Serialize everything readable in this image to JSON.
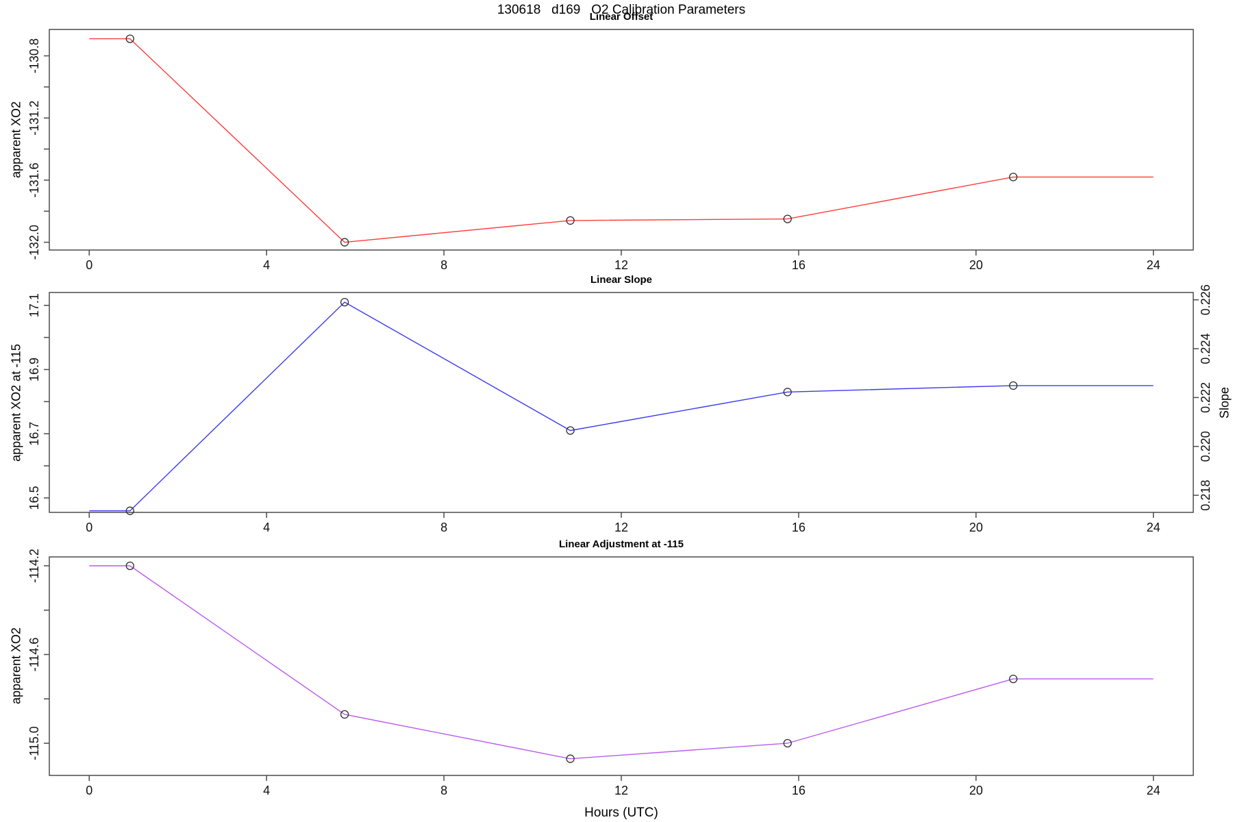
{
  "figure": {
    "title": "130618   d169   O2 Calibration Parameters",
    "xlabel": "Hours (UTC)"
  },
  "chart_data": [
    {
      "type": "line",
      "title": "Linear Offset",
      "ylabel": "apparent XO2",
      "series_color": "#ff3b3b",
      "marker": "open-circle",
      "x": [
        0.92,
        5.76,
        10.85,
        15.75,
        20.84
      ],
      "y": [
        -130.69,
        -132.0,
        -131.86,
        -131.85,
        -131.58
      ],
      "line_extends_to": [
        0,
        24
      ],
      "xlim": [
        -0.9,
        24.9
      ],
      "ylim": [
        -132.05,
        -130.63
      ],
      "x_ticks": [
        0,
        4,
        8,
        12,
        16,
        20,
        24
      ],
      "y_ticks": [
        -132.0,
        -131.8,
        -131.6,
        -131.4,
        -131.2,
        -131.0,
        -130.8
      ],
      "y_tick_labels": [
        "-132.0",
        "",
        "-131.6",
        "",
        "-131.2",
        "",
        "-130.8"
      ],
      "grid": false,
      "legend": "none"
    },
    {
      "type": "line",
      "title": "Linear Slope",
      "ylabel": "apparent XO2 at -115",
      "ylabel_right": "Slope",
      "series_color": "#3a3aef",
      "marker": "open-circle",
      "x": [
        0.92,
        5.76,
        10.85,
        15.75,
        20.84
      ],
      "y": [
        16.46,
        17.11,
        16.71,
        16.83,
        16.85
      ],
      "slope_values": [
        0.2174,
        0.2259,
        0.2207,
        0.2222,
        0.2225
      ],
      "line_extends_to": [
        0,
        24
      ],
      "xlim": [
        -0.9,
        24.9
      ],
      "ylim": [
        16.455,
        17.14
      ],
      "x_ticks": [
        0,
        4,
        8,
        12,
        16,
        20,
        24
      ],
      "y_ticks": [
        16.5,
        16.6,
        16.7,
        16.8,
        16.9,
        17.0,
        17.1
      ],
      "y_tick_labels": [
        "16.5",
        "",
        "16.7",
        "",
        "16.9",
        "",
        "17.1"
      ],
      "right_ylim": [
        0.2173,
        0.2263
      ],
      "right_ticks": [
        0.218,
        0.22,
        0.222,
        0.224,
        0.226
      ],
      "right_tick_labels": [
        "0.218",
        "0.220",
        "0.222",
        "0.224",
        "0.226"
      ],
      "grid": false,
      "legend": "none"
    },
    {
      "type": "line",
      "title": "Linear Adjustment at -115",
      "ylabel": "apparent XO2",
      "series_color": "#bb59ee",
      "marker": "open-circle",
      "x": [
        0.92,
        5.76,
        10.85,
        15.75,
        20.84
      ],
      "y": [
        -114.2,
        -114.87,
        -115.07,
        -115.0,
        -114.71
      ],
      "line_extends_to": [
        0,
        24
      ],
      "xlim": [
        -0.9,
        24.9
      ],
      "ylim": [
        -115.145,
        -114.16
      ],
      "x_ticks": [
        0,
        4,
        8,
        12,
        16,
        20,
        24
      ],
      "y_ticks": [
        -115.0,
        -114.8,
        -114.6,
        -114.4,
        -114.2
      ],
      "y_tick_labels": [
        "-115.0",
        "",
        "-114.6",
        "",
        "-114.2"
      ],
      "grid": false,
      "legend": "none"
    }
  ]
}
